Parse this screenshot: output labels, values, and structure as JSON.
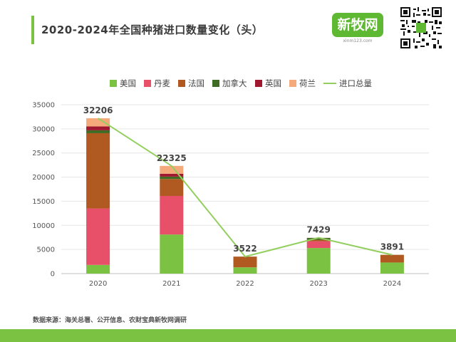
{
  "title": "2020-2024年全国种猪进口数量变化（头）",
  "logo": {
    "text": "新牧网",
    "url": "xinm123.com"
  },
  "source": "数据来源：海关总署、公开信息、农财宝典新牧网调研",
  "colors": {
    "accent": "#7cc242",
    "美国": "#7cc242",
    "丹麦": "#e8506a",
    "法国": "#b05a22",
    "加拿大": "#3f6b25",
    "英国": "#a01830",
    "荷兰": "#f4aa7a",
    "进口总量": "#92cf5e"
  },
  "chart_data": {
    "type": "bar",
    "stacked": true,
    "categories": [
      "2020",
      "2021",
      "2022",
      "2023",
      "2024"
    ],
    "series": [
      {
        "name": "美国",
        "values": [
          1800,
          8100,
          1300,
          5300,
          2300
        ]
      },
      {
        "name": "丹麦",
        "values": [
          11700,
          8000,
          0,
          1400,
          0
        ]
      },
      {
        "name": "法国",
        "values": [
          15600,
          3500,
          2222,
          300,
          1591
        ]
      },
      {
        "name": "加拿大",
        "values": [
          600,
          500,
          0,
          400,
          0
        ]
      },
      {
        "name": "英国",
        "values": [
          800,
          600,
          0,
          0,
          0
        ]
      },
      {
        "name": "荷兰",
        "values": [
          1706,
          1625,
          0,
          29,
          0
        ]
      }
    ],
    "line": {
      "name": "进口总量",
      "values": [
        32206,
        22325,
        3522,
        7429,
        3891
      ]
    },
    "ylim": [
      0,
      35000
    ],
    "yticks": [
      0,
      5000,
      10000,
      15000,
      20000,
      25000,
      30000,
      35000
    ],
    "grid": true,
    "legend": "top"
  }
}
